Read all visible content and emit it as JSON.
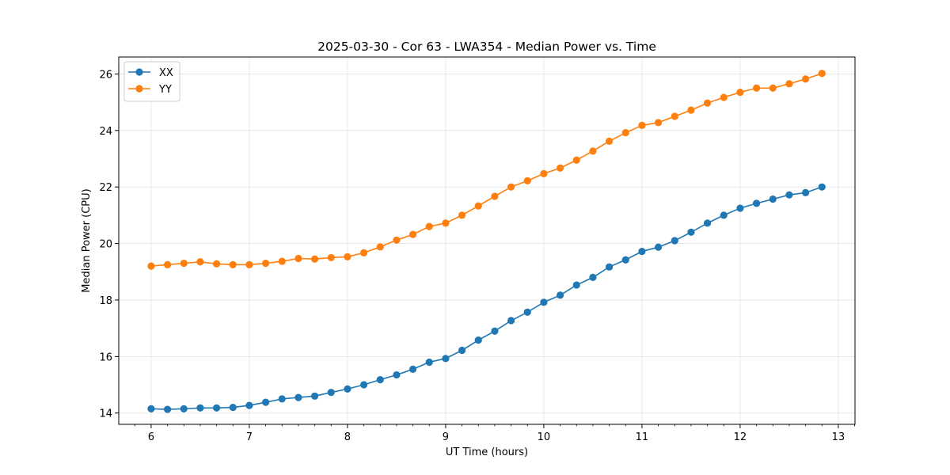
{
  "chart_data": {
    "type": "line",
    "title": "2025-03-30 - Cor 63 - LWA354 - Median Power vs. Time",
    "xlabel": "UT Time (hours)",
    "ylabel": "Median Power (CPU)",
    "xlim": [
      5.67,
      13.17
    ],
    "ylim": [
      13.6,
      26.6
    ],
    "xticks": [
      6,
      7,
      8,
      9,
      10,
      11,
      12,
      13
    ],
    "yticks": [
      14,
      16,
      18,
      20,
      22,
      24,
      26
    ],
    "xtick_labels": [
      "6",
      "7",
      "8",
      "9",
      "10",
      "11",
      "12",
      "13"
    ],
    "ytick_labels": [
      "14",
      "16",
      "18",
      "20",
      "22",
      "24",
      "26"
    ],
    "grid": true,
    "legend_position": "top-left",
    "x": [
      6.0,
      6.1667,
      6.3333,
      6.5,
      6.6667,
      6.8333,
      7.0,
      7.1667,
      7.3333,
      7.5,
      7.6667,
      7.8333,
      8.0,
      8.1667,
      8.3333,
      8.5,
      8.6667,
      8.8333,
      9.0,
      9.1667,
      9.3333,
      9.5,
      9.6667,
      9.8333,
      10.0,
      10.1667,
      10.3333,
      10.5,
      10.6667,
      10.8333,
      11.0,
      11.1667,
      11.3333,
      11.5,
      11.6667,
      11.8333,
      12.0,
      12.1667,
      12.3333,
      12.5,
      12.6667,
      12.8333
    ],
    "series": [
      {
        "name": "XX",
        "color": "#1f77b4",
        "values": [
          14.15,
          14.13,
          14.15,
          14.18,
          14.18,
          14.2,
          14.27,
          14.38,
          14.5,
          14.55,
          14.6,
          14.73,
          14.85,
          15.0,
          15.18,
          15.35,
          15.55,
          15.8,
          15.93,
          16.22,
          16.58,
          16.9,
          17.27,
          17.57,
          17.92,
          18.17,
          18.53,
          18.8,
          19.17,
          19.42,
          19.72,
          19.87,
          20.1,
          20.4,
          20.72,
          21.0,
          21.25,
          21.42,
          21.57,
          21.72,
          21.8,
          22.0
        ]
      },
      {
        "name": "YY",
        "color": "#ff7f0e",
        "values": [
          19.2,
          19.25,
          19.3,
          19.35,
          19.28,
          19.25,
          19.25,
          19.3,
          19.37,
          19.47,
          19.45,
          19.5,
          19.53,
          19.67,
          19.88,
          20.12,
          20.32,
          20.6,
          20.72,
          21.0,
          21.33,
          21.67,
          22.0,
          22.22,
          22.47,
          22.67,
          22.95,
          23.27,
          23.62,
          23.92,
          24.18,
          24.28,
          24.5,
          24.72,
          24.97,
          25.17,
          25.35,
          25.5,
          25.5,
          25.65,
          25.82,
          26.02
        ]
      }
    ]
  }
}
